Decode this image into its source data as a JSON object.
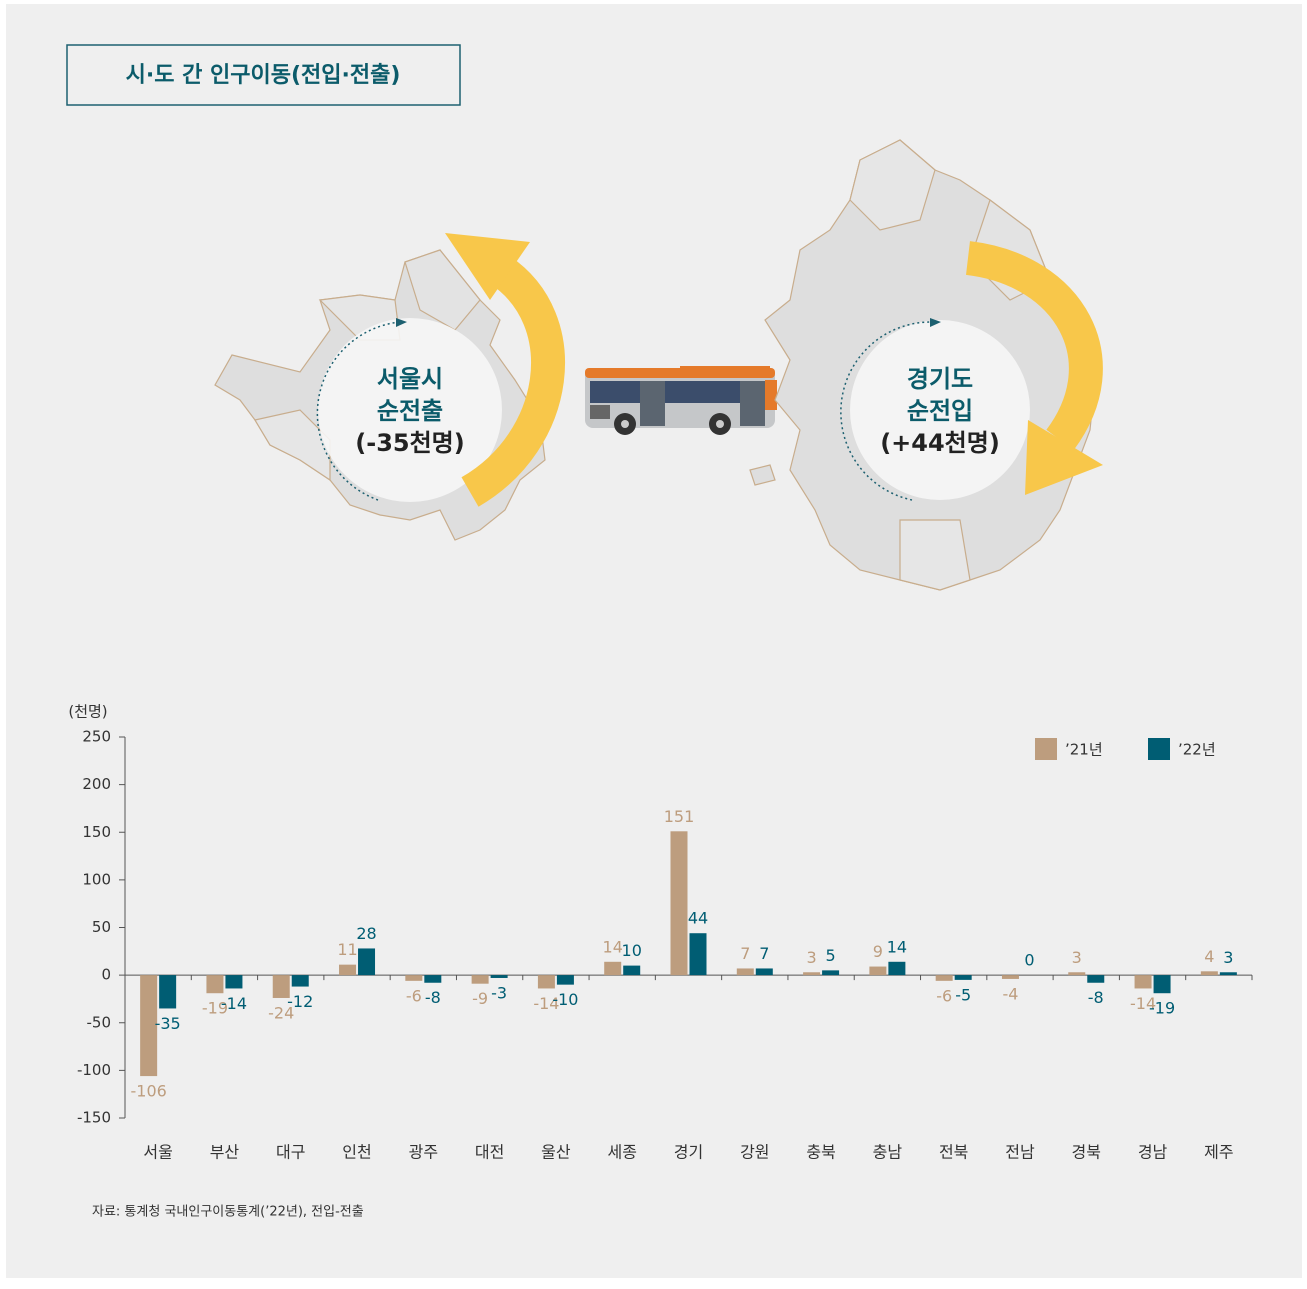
{
  "header": {
    "title": "시·도 간 인구이동(전입·전출)"
  },
  "illustration": {
    "seoul": [
      "서울시",
      "순전출",
      "(-35천명)"
    ],
    "gyeonggi": [
      "경기도",
      "순전입",
      "(+44천명)"
    ]
  },
  "chart_data": {
    "type": "bar",
    "y_label": "(천명)",
    "categories": [
      "서울",
      "부산",
      "대구",
      "인천",
      "광주",
      "대전",
      "울산",
      "세종",
      "경기",
      "강원",
      "충북",
      "충남",
      "전북",
      "전남",
      "경북",
      "경남",
      "제주"
    ],
    "series": [
      {
        "name": "’21년",
        "color": "#bd9d7e",
        "values": [
          -106,
          -19,
          -24,
          11,
          -6,
          -9,
          -14,
          14,
          151,
          7,
          3,
          9,
          -6,
          -4,
          3,
          -14,
          4
        ]
      },
      {
        "name": "’22년",
        "color": "#005d73",
        "values": [
          -35,
          -14,
          -12,
          28,
          -8,
          -3,
          -10,
          10,
          44,
          7,
          5,
          14,
          -5,
          0,
          -8,
          -19,
          3
        ]
      }
    ],
    "ylim": [
      -150,
      250
    ],
    "yticks": [
      -150,
      -100,
      -50,
      0,
      50,
      100,
      150,
      200,
      250
    ],
    "legend": "upper right"
  },
  "source": "자료: 통계청 국내인구이동통계(’22년), 전입-전출"
}
